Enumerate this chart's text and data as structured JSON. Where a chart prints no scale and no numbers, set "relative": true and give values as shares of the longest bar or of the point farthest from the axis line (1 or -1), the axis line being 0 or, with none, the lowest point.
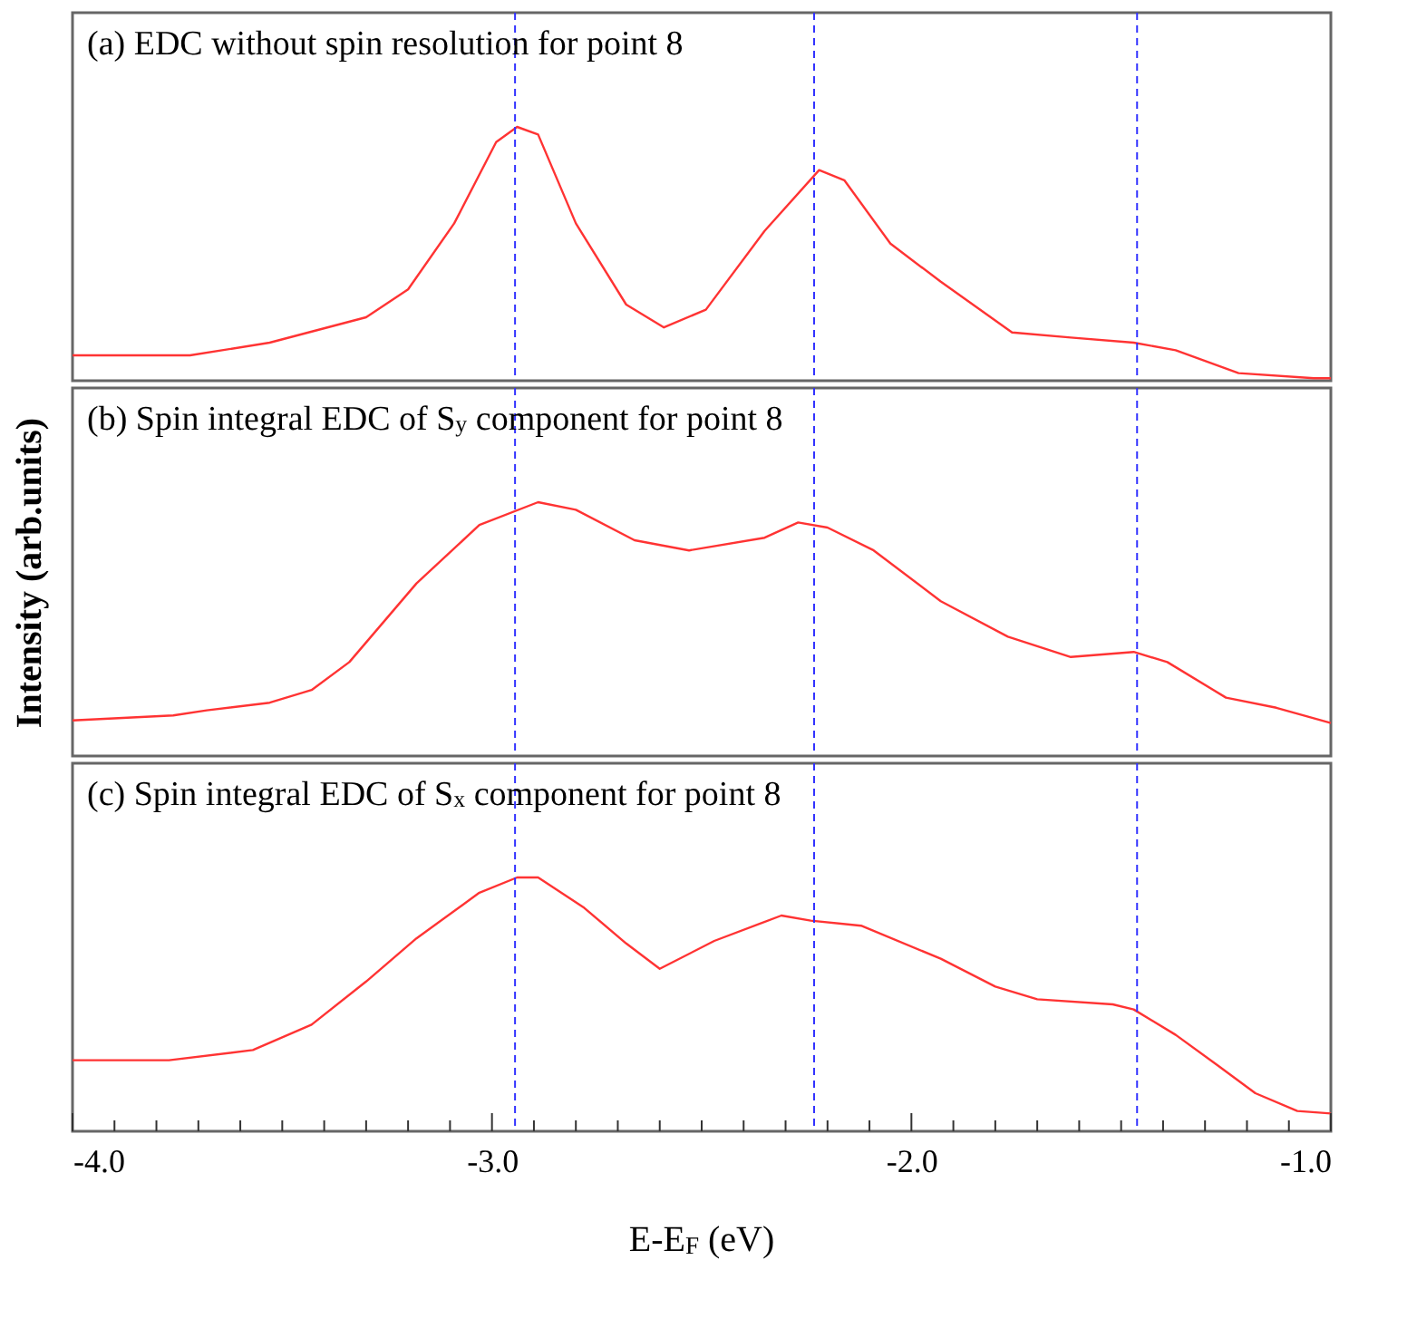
{
  "chart_data": [
    {
      "type": "line",
      "title": "(a) EDC without spin resolution for point 8",
      "relative": true,
      "tick_labels": false,
      "x": [
        -4.0,
        -3.72,
        -3.53,
        -3.3,
        -3.2,
        -3.09,
        -2.99,
        -2.94,
        -2.89,
        -2.8,
        -2.68,
        -2.59,
        -2.49,
        -2.35,
        -2.22,
        -2.16,
        -2.05,
        -1.93,
        -1.76,
        -1.62,
        -1.47,
        -1.37,
        -1.22,
        -1.04,
        -1.0
      ],
      "xlim": [
        -4.0,
        -1.0
      ],
      "series": [
        {
          "color": "#ff3333",
          "values": [
            0.1,
            0.1,
            0.15,
            0.25,
            0.36,
            0.62,
            0.94,
            1.0,
            0.97,
            0.62,
            0.3,
            0.21,
            0.28,
            0.59,
            0.83,
            0.79,
            0.54,
            0.39,
            0.19,
            0.17,
            0.15,
            0.12,
            0.03,
            0.01,
            0.01
          ]
        }
      ],
      "ref_lines": [
        {
          "axis": "x",
          "value": -2.945,
          "color": "#3333ff",
          "line_style": "dashed"
        },
        {
          "axis": "x",
          "value": -2.232,
          "color": "#3333ff",
          "line_style": "dashed"
        },
        {
          "axis": "x",
          "value": -1.462,
          "color": "#3333ff",
          "line_style": "dashed"
        }
      ]
    },
    {
      "type": "line",
      "title": "(b) Spin integral EDC of S$_{y}$ component for point 8",
      "ylabel": "Intensity (arb.units)",
      "relative": true,
      "tick_labels": false,
      "x": [
        -4.0,
        -3.76,
        -3.68,
        -3.53,
        -3.43,
        -3.34,
        -3.18,
        -3.03,
        -2.89,
        -2.8,
        -2.66,
        -2.53,
        -2.35,
        -2.27,
        -2.2,
        -2.09,
        -1.93,
        -1.77,
        -1.62,
        -1.47,
        -1.39,
        -1.25,
        -1.13,
        -1.0
      ],
      "xlim": [
        -4.0,
        -1.0
      ],
      "series": [
        {
          "color": "#ff3333",
          "values": [
            0.14,
            0.16,
            0.18,
            0.21,
            0.26,
            0.37,
            0.68,
            0.91,
            1.0,
            0.97,
            0.85,
            0.81,
            0.86,
            0.92,
            0.9,
            0.81,
            0.61,
            0.47,
            0.39,
            0.41,
            0.37,
            0.23,
            0.19,
            0.13
          ]
        }
      ],
      "ref_lines": [
        {
          "axis": "x",
          "value": -2.945,
          "color": "#3333ff",
          "line_style": "dashed"
        },
        {
          "axis": "x",
          "value": -2.232,
          "color": "#3333ff",
          "line_style": "dashed"
        },
        {
          "axis": "x",
          "value": -1.462,
          "color": "#3333ff",
          "line_style": "dashed"
        }
      ]
    },
    {
      "type": "line",
      "title": "(c) Spin integral EDC of S$_{x}$ component for point 8",
      "xlabel": "E-E$_{F}$ (eV)",
      "relative": true,
      "tick_labels": "x",
      "x": [
        -4.0,
        -3.77,
        -3.57,
        -3.43,
        -3.3,
        -3.18,
        -3.03,
        -2.94,
        -2.89,
        -2.78,
        -2.68,
        -2.6,
        -2.47,
        -2.31,
        -2.24,
        -2.12,
        -1.93,
        -1.8,
        -1.7,
        -1.52,
        -1.47,
        -1.37,
        -1.27,
        -1.18,
        -1.08,
        -1.0
      ],
      "xlim": [
        -4.0,
        -1.0
      ],
      "xticks": [
        {
          "value": -4.0,
          "label": "-4.0"
        },
        {
          "value": -3.9,
          "label": null
        },
        {
          "value": -3.8,
          "label": null
        },
        {
          "value": -3.7,
          "label": null
        },
        {
          "value": -3.6,
          "label": null
        },
        {
          "value": -3.5,
          "label": null
        },
        {
          "value": -3.4,
          "label": null
        },
        {
          "value": -3.3,
          "label": null
        },
        {
          "value": -3.2,
          "label": null
        },
        {
          "value": -3.1,
          "label": null
        },
        {
          "value": -3.0,
          "label": "-3.0"
        },
        {
          "value": -2.9,
          "label": null
        },
        {
          "value": -2.8,
          "label": null
        },
        {
          "value": -2.7,
          "label": null
        },
        {
          "value": -2.6,
          "label": null
        },
        {
          "value": -2.5,
          "label": null
        },
        {
          "value": -2.4,
          "label": null
        },
        {
          "value": -2.3,
          "label": null
        },
        {
          "value": -2.2,
          "label": null
        },
        {
          "value": -2.1,
          "label": null
        },
        {
          "value": -2.0,
          "label": "-2.0"
        },
        {
          "value": -1.9,
          "label": null
        },
        {
          "value": -1.8,
          "label": null
        },
        {
          "value": -1.7,
          "label": null
        },
        {
          "value": -1.6,
          "label": null
        },
        {
          "value": -1.5,
          "label": null
        },
        {
          "value": -1.4,
          "label": null
        },
        {
          "value": -1.3,
          "label": null
        },
        {
          "value": -1.2,
          "label": null
        },
        {
          "value": -1.1,
          "label": null
        },
        {
          "value": -1.0,
          "label": "-1.0"
        }
      ],
      "series": [
        {
          "color": "#ff3333",
          "values": [
            0.28,
            0.28,
            0.32,
            0.42,
            0.59,
            0.76,
            0.94,
            1.0,
            1.0,
            0.88,
            0.74,
            0.64,
            0.75,
            0.85,
            0.83,
            0.81,
            0.68,
            0.57,
            0.52,
            0.5,
            0.48,
            0.38,
            0.26,
            0.15,
            0.08,
            0.07
          ]
        }
      ],
      "ref_lines": [
        {
          "axis": "x",
          "value": -2.945,
          "color": "#3333ff",
          "line_style": "dashed"
        },
        {
          "axis": "x",
          "value": -2.232,
          "color": "#3333ff",
          "line_style": "dashed"
        },
        {
          "axis": "x",
          "value": -1.462,
          "color": "#3333ff",
          "line_style": "dashed"
        }
      ]
    }
  ]
}
